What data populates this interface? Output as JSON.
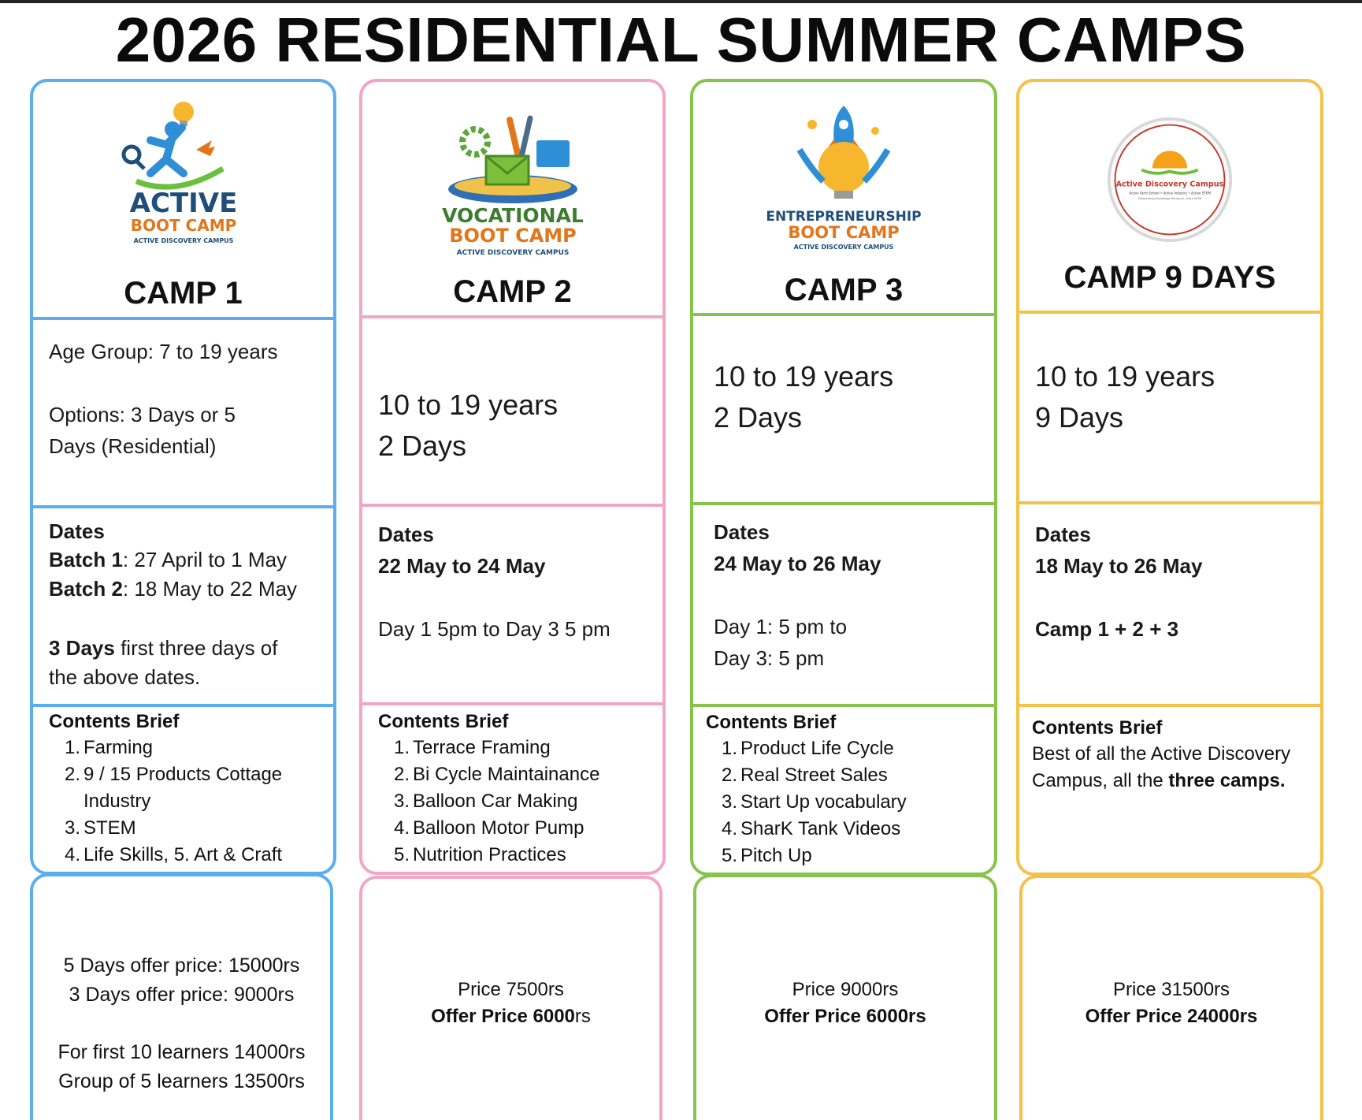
{
  "page": {
    "title": "2026 RESIDENTIAL SUMMER CAMPS"
  },
  "colors": {
    "blue": "#5aaef0",
    "pink": "#f2a6c6",
    "green": "#86c44b",
    "yellow": "#f4c24a"
  },
  "camps": [
    {
      "logo": {
        "icon": "runner-lightbulb-icon",
        "line1": "ACTIVE",
        "line2": "BOOT CAMP",
        "line3": "ACTIVE DISCOVERY CAMPUS"
      },
      "label": "CAMP 1",
      "info": {
        "line1": "Age Group: 7 to 19 years",
        "line2": "Options: 3 Days or 5",
        "line3": "Days (Residential)"
      },
      "dates": {
        "heading": "Dates",
        "batch1_label": "Batch 1",
        "batch1_value": ": 27 April  to 1 May",
        "batch2_label": "Batch 2",
        "batch2_value": ": 18 May to 22 May",
        "note_bold": "3 Days",
        "note_rest": " first three days of",
        "note_line2": "the above dates."
      },
      "brief": {
        "heading": "Contents Brief",
        "items": [
          {
            "n": "1.",
            "text": "Farming"
          },
          {
            "n": "2.",
            "text": "9 / 15 Products Cottage"
          },
          {
            "n": "",
            "text": "Industry"
          },
          {
            "n": "3.",
            "text": "STEM"
          },
          {
            "n": "4.",
            "text": "Life Skills, 5. Art & Craft"
          }
        ]
      },
      "price": {
        "line1": "5 Days offer price: 15000rs",
        "line2": "3 Days offer price: 9000rs",
        "line3": "For first 10 learners 14000rs",
        "line4": "Group of 5 learners 13500rs"
      }
    },
    {
      "logo": {
        "icon": "tools-envelope-icon",
        "line1": "VOCATIONAL",
        "line2": "BOOT CAMP",
        "line3": "ACTIVE DISCOVERY CAMPUS"
      },
      "label": "CAMP 2",
      "info": {
        "line1": "10 to 19 years",
        "line2": "2 Days"
      },
      "dates": {
        "heading": "Dates",
        "range": "22 May to 24 May",
        "detail": "Day 1 5pm to Day 3 5 pm"
      },
      "brief": {
        "heading": "Contents Brief",
        "items": [
          {
            "n": "1.",
            "text": "Terrace Framing"
          },
          {
            "n": "2.",
            "text": "Bi Cycle Maintainance"
          },
          {
            "n": "3.",
            "text": "Balloon Car Making"
          },
          {
            "n": "4.",
            "text": "Balloon Motor Pump"
          },
          {
            "n": "5.",
            "text": "Nutrition Practices"
          }
        ]
      },
      "price": {
        "regular": "Price 7500rs",
        "offer_bold": "Offer Price 6000",
        "offer_suffix": "rs"
      }
    },
    {
      "logo": {
        "icon": "rocket-lightbulb-icon",
        "line1": "ENTREPRENEURSHIP",
        "line2": "BOOT CAMP",
        "line3": "ACTIVE DISCOVERY CAMPUS"
      },
      "label": "CAMP 3",
      "info": {
        "line1": "10 to 19 years",
        "line2": "2 Days"
      },
      "dates": {
        "heading": "Dates",
        "range": "24 May to 26 May",
        "detail1": "Day 1: 5 pm to",
        "detail2": "Day 3: 5 pm"
      },
      "brief": {
        "heading": "Contents Brief",
        "items": [
          {
            "n": "1.",
            "text": "Product Life Cycle"
          },
          {
            "n": "2.",
            "text": "Real Street Sales"
          },
          {
            "n": "3.",
            "text": "Start Up vocabulary"
          },
          {
            "n": "4.",
            "text": "SharK Tank Videos"
          },
          {
            "n": "5.",
            "text": "Pitch Up"
          }
        ]
      },
      "price": {
        "regular": "Price 9000rs",
        "offer_bold": "Offer Price 6000rs"
      }
    },
    {
      "logo": {
        "icon": "sunrise-seal-icon",
        "line1": "Active Discovery Campus",
        "line2": "Active Farm School • Active Industry • Active STEM",
        "line3": "Discovering Knowledge Hands-on, Since 2008"
      },
      "label": "CAMP 9 DAYS",
      "info": {
        "line1": "10 to 19 years",
        "line2": "9 Days"
      },
      "dates": {
        "heading": "Dates",
        "range": "18 May to 26 May",
        "combo": "Camp 1 + 2 + 3"
      },
      "brief": {
        "heading": "Contents Brief",
        "line1": "Best of all the Active Discovery",
        "line2_pre": "Campus, all the ",
        "line2_bold": "three camps."
      },
      "price": {
        "regular": "Price 31500rs",
        "offer_bold": "Offer Price 24000rs"
      }
    }
  ]
}
